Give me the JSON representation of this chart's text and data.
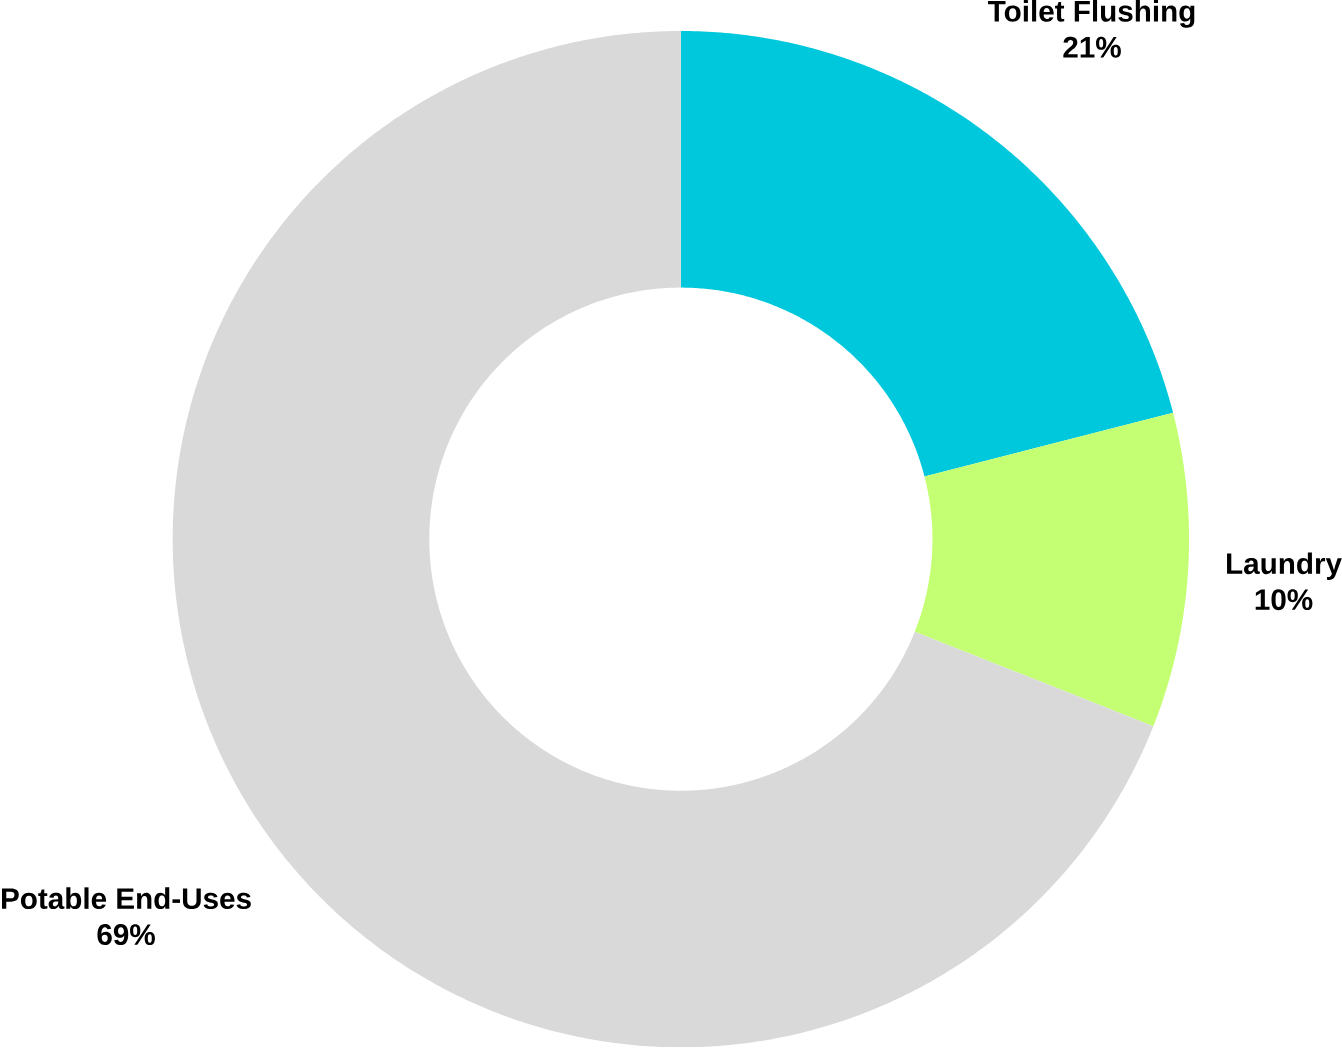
{
  "chart_data": {
    "type": "donut",
    "categories": [
      "Toilet Flushing",
      "Laundry",
      "Potable End-Uses"
    ],
    "values": [
      21,
      10,
      69
    ],
    "colors": [
      "#00c8dc",
      "#c4ff73",
      "#d9d9d9"
    ],
    "value_labels": [
      "21%",
      "10%",
      "69%"
    ]
  }
}
